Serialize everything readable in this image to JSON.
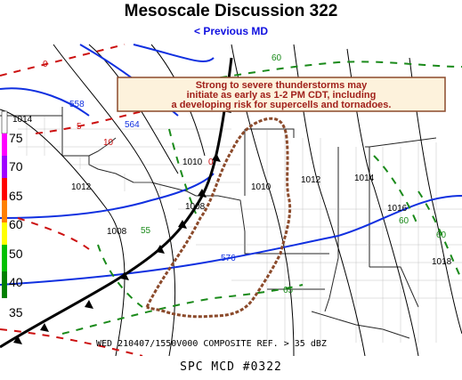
{
  "header": {
    "title": "Mesoscale Discussion 322",
    "previous_link": "< Previous MD"
  },
  "map": {
    "callout_lines": [
      "Strong to severe thunderstorms may",
      "initiate as early as 1-2 PM CDT, including",
      "a developing risk for supercells and tornadoes."
    ],
    "timestamp_caption": "WED 210407/1550V000   COMPOSITE REF. > 35 dBZ",
    "legend_values": [
      "75",
      "70",
      "65",
      "60",
      "50",
      "40",
      "35"
    ],
    "isobar_labels": [
      "1014",
      "1012",
      "1010",
      "1008",
      "1008",
      "1010",
      "1012",
      "1014",
      "1016",
      "1018"
    ],
    "height_labels": [
      "558",
      "564",
      "576"
    ],
    "dewpoint_labels": [
      "60",
      "55",
      "60",
      "60",
      "65"
    ],
    "temp_labels": [
      "0",
      "5",
      "10",
      "0"
    ]
  },
  "colors": {
    "title": "#000000",
    "link": "#1010e0",
    "isobar": "#000000",
    "height_contour": "#1030e0",
    "dewpoint": "#1a8a1a",
    "temperature": "#cc1010",
    "md_outline": "#8b4a2b",
    "callout_bg": "#fdf2dc",
    "callout_border": "#8b4a2b",
    "callout_text": "#a0201a"
  },
  "footer": {
    "label": "SPC MCD #0322"
  }
}
